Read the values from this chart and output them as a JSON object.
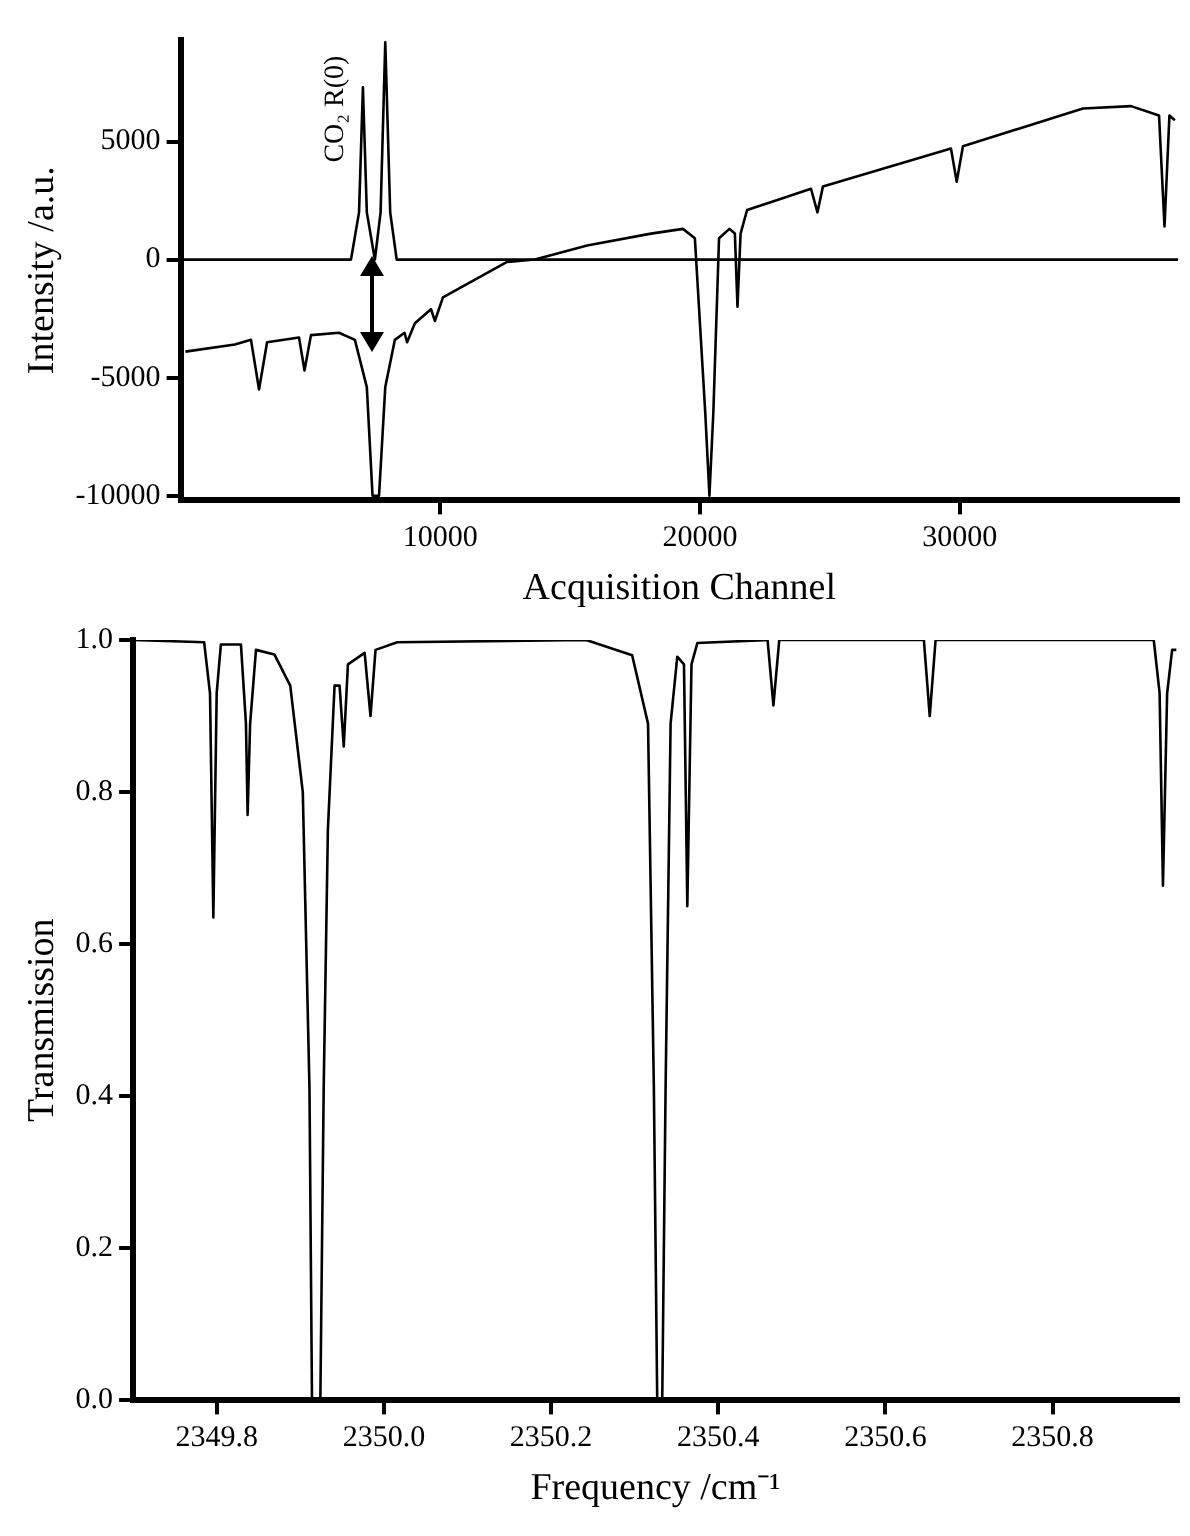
{
  "chart_data": [
    {
      "type": "line",
      "xlabel": "Acquisition Channel",
      "ylabel": "Intensity /a.u.",
      "xlim": [
        0,
        38400
      ],
      "ylim": [
        -10200,
        9300
      ],
      "xticks": [
        10000,
        20000,
        30000
      ],
      "yticks": [
        -10000,
        -5000,
        0,
        5000
      ],
      "grid": false,
      "legend": false,
      "marker": "none",
      "line_style": "solid",
      "annotations": [
        "CO₂ R(0)"
      ],
      "series": [
        {
          "color": "#000000",
          "x": [
            0,
            6560,
            6870,
            7020,
            7170,
            7480,
            7700,
            7880,
            8070,
            8320,
            38400
          ],
          "values": [
            0,
            0,
            2000,
            7300,
            2000,
            0,
            2000,
            9200,
            2000,
            0,
            0
          ]
        },
        {
          "color": "#000000",
          "x": [
            185,
            2090,
            2710,
            3020,
            3330,
            4560,
            4770,
            5020,
            6100,
            6710,
            7170,
            7390,
            7640,
            7880,
            8250,
            8620,
            8720,
            9020,
            9640,
            9790,
            10100,
            12570,
            13640,
            15650,
            18110,
            19340,
            19800,
            20200,
            20360,
            20510,
            20730,
            21130,
            21340,
            21440,
            21560,
            21810,
            24270,
            24520,
            24730,
            29660,
            29880,
            30120,
            34740,
            36590,
            37670,
            37880,
            38070,
            38280
          ],
          "values": [
            -3900,
            -3600,
            -3400,
            -5500,
            -3500,
            -3300,
            -4700,
            -3200,
            -3100,
            -3400,
            -5400,
            -10000,
            -10000,
            -5400,
            -3400,
            -3100,
            -3500,
            -2700,
            -2100,
            -2600,
            -1600,
            -100,
            0,
            600,
            1100,
            1300,
            900,
            -6500,
            -10000,
            -6500,
            900,
            1300,
            1100,
            -2000,
            1100,
            2100,
            3000,
            2000,
            3100,
            4700,
            3300,
            4800,
            6400,
            6500,
            6100,
            1400,
            6100,
            5900
          ]
        }
      ]
    },
    {
      "type": "line",
      "xlabel": "Frequency /cm⁻¹",
      "ylabel": "Transmission",
      "xlim": [
        2349.7,
        2350.95
      ],
      "ylim": [
        0,
        1.0
      ],
      "xticks": [
        2349.8,
        {
          "value": 2350.0,
          "label": "2350.0"
        },
        2350.2,
        2350.4,
        2350.6,
        2350.8
      ],
      "yticks": [
        {
          "value": 0,
          "label": "0.0"
        },
        0.2,
        0.4,
        0.6,
        0.8,
        {
          "value": 1,
          "label": "1.0"
        }
      ],
      "grid": false,
      "legend": false,
      "marker": "none",
      "line_style": "solid",
      "series": [
        {
          "color": "#000000",
          "x": [
            2349.7,
            2349.785,
            2349.792,
            2349.796,
            2349.8,
            2349.805,
            2349.829,
            2349.835,
            2349.837,
            2349.84,
            2349.847,
            2349.869,
            2349.888,
            2349.903,
            2349.911,
            2349.914,
            2349.924,
            2349.928,
            2349.933,
            2349.941,
            2349.947,
            2349.952,
            2349.957,
            2349.977,
            2349.984,
            2349.99,
            2350.016,
            2350.242,
            2350.297,
            2350.316,
            2350.323,
            2350.327,
            2350.333,
            2350.337,
            2350.343,
            2350.351,
            2350.359,
            2350.363,
            2350.368,
            2350.375,
            2350.459,
            2350.466,
            2350.473,
            2350.646,
            2350.653,
            2350.66,
            2350.921,
            2350.928,
            2350.932,
            2350.937,
            2350.943,
            2350.948
          ],
          "values": [
            1.0,
            0.997,
            0.93,
            0.635,
            0.93,
            0.994,
            0.994,
            0.89,
            0.77,
            0.89,
            0.987,
            0.981,
            0.94,
            0.8,
            0.41,
            0,
            0,
            0.41,
            0.75,
            0.94,
            0.94,
            0.86,
            0.968,
            0.983,
            0.9,
            0.987,
            0.997,
            1.0,
            0.98,
            0.89,
            0.41,
            0,
            0,
            0.41,
            0.89,
            0.978,
            0.968,
            0.65,
            0.968,
            0.996,
            1.0,
            0.914,
            1.0,
            1.0,
            0.9,
            1.0,
            1.0,
            0.93,
            0.677,
            0.93,
            0.987,
            0.987
          ]
        }
      ]
    }
  ]
}
